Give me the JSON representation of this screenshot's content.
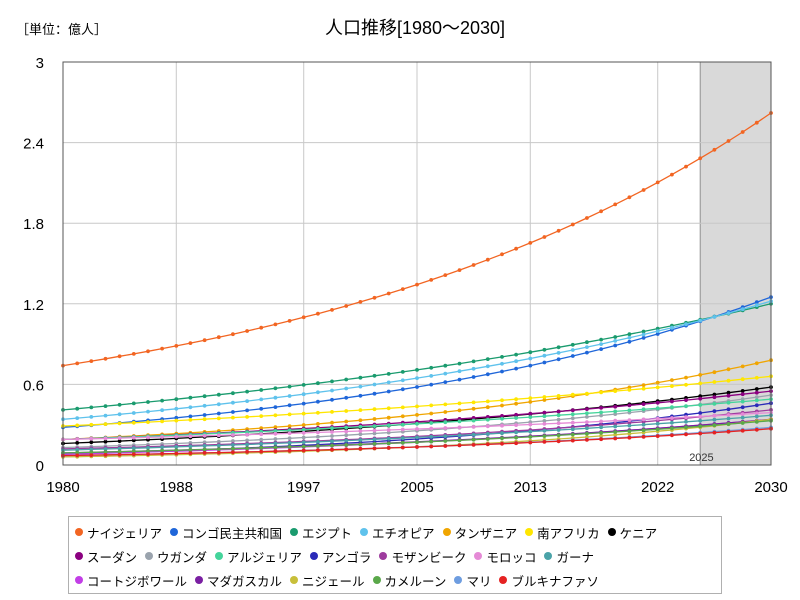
{
  "chart_data": {
    "type": "line",
    "title": "人口推移[1980～2030]",
    "unit_label": "［単位：億人］",
    "xlim": [
      1980,
      2030
    ],
    "ylim": [
      0,
      3
    ],
    "x_ticks": [
      "1980",
      "1988",
      "1997",
      "2005",
      "2013",
      "2022",
      "2030"
    ],
    "y_ticks": [
      "0",
      "0.6",
      "1.2",
      "1.8",
      "2.4",
      "3"
    ],
    "x_tick_values": [
      1980,
      1988,
      1997,
      2005,
      2013,
      2022,
      2030
    ],
    "y_tick_values": [
      0,
      0.6,
      1.2,
      1.8,
      2.4,
      3
    ],
    "forecast_region": {
      "from": 2025,
      "to": 2030,
      "label": "2025"
    },
    "grid": true,
    "legend_position": "bottom",
    "x_start": 1980,
    "x_end": 2030,
    "series": [
      {
        "name": "ナイジェリア",
        "color": "#f26522",
        "start": 0.74,
        "end": 2.62,
        "shape": 1.5
      },
      {
        "name": "コンゴ民主共和国",
        "color": "#1f66d9",
        "start": 0.28,
        "end": 1.25,
        "shape": 1.6
      },
      {
        "name": "エジプト",
        "color": "#1a9b6e",
        "start": 0.41,
        "end": 1.2,
        "shape": 1.0
      },
      {
        "name": "エチオピア",
        "color": "#5fc2ec",
        "start": 0.34,
        "end": 1.22,
        "shape": 1.25
      },
      {
        "name": "タンザニア",
        "color": "#f0a500",
        "start": 0.19,
        "end": 0.78,
        "shape": 1.6
      },
      {
        "name": "南アフリカ",
        "color": "#ffe600",
        "start": 0.29,
        "end": 0.66,
        "shape": 0.85
      },
      {
        "name": "ケニア",
        "color": "#000000",
        "start": 0.16,
        "end": 0.58,
        "shape": 1.2
      },
      {
        "name": "スーダン",
        "color": "#8b0080",
        "start": 0.19,
        "end": 0.55,
        "shape": 1.1
      },
      {
        "name": "ウガンダ",
        "color": "#9aa3ad",
        "start": 0.13,
        "end": 0.52,
        "shape": 1.5
      },
      {
        "name": "アルジェリア",
        "color": "#44d49b",
        "start": 0.19,
        "end": 0.49,
        "shape": 0.9
      },
      {
        "name": "アンゴラ",
        "color": "#2a2ab8",
        "start": 0.08,
        "end": 0.46,
        "shape": 1.7
      },
      {
        "name": "モザンビーク",
        "color": "#9e3c9e",
        "start": 0.12,
        "end": 0.41,
        "shape": 1.5
      },
      {
        "name": "モロッコ",
        "color": "#e58ad6",
        "start": 0.19,
        "end": 0.39,
        "shape": 0.9
      },
      {
        "name": "ガーナ",
        "color": "#4aa3a8",
        "start": 0.11,
        "end": 0.37,
        "shape": 1.1
      },
      {
        "name": "コートジボワール",
        "color": "#c23ee6",
        "start": 0.08,
        "end": 0.34,
        "shape": 1.3
      },
      {
        "name": "マダガスカル",
        "color": "#7a1fa2",
        "start": 0.09,
        "end": 0.34,
        "shape": 1.4
      },
      {
        "name": "ニジェール",
        "color": "#c8bf3a",
        "start": 0.06,
        "end": 0.34,
        "shape": 2.0
      },
      {
        "name": "カメルーン",
        "color": "#5aa84a",
        "start": 0.09,
        "end": 0.33,
        "shape": 1.4
      },
      {
        "name": "マリ",
        "color": "#6e9de0",
        "start": 0.07,
        "end": 0.28,
        "shape": 1.6
      },
      {
        "name": "ブルキナファソ",
        "color": "#e52222",
        "start": 0.07,
        "end": 0.27,
        "shape": 1.5
      }
    ]
  }
}
